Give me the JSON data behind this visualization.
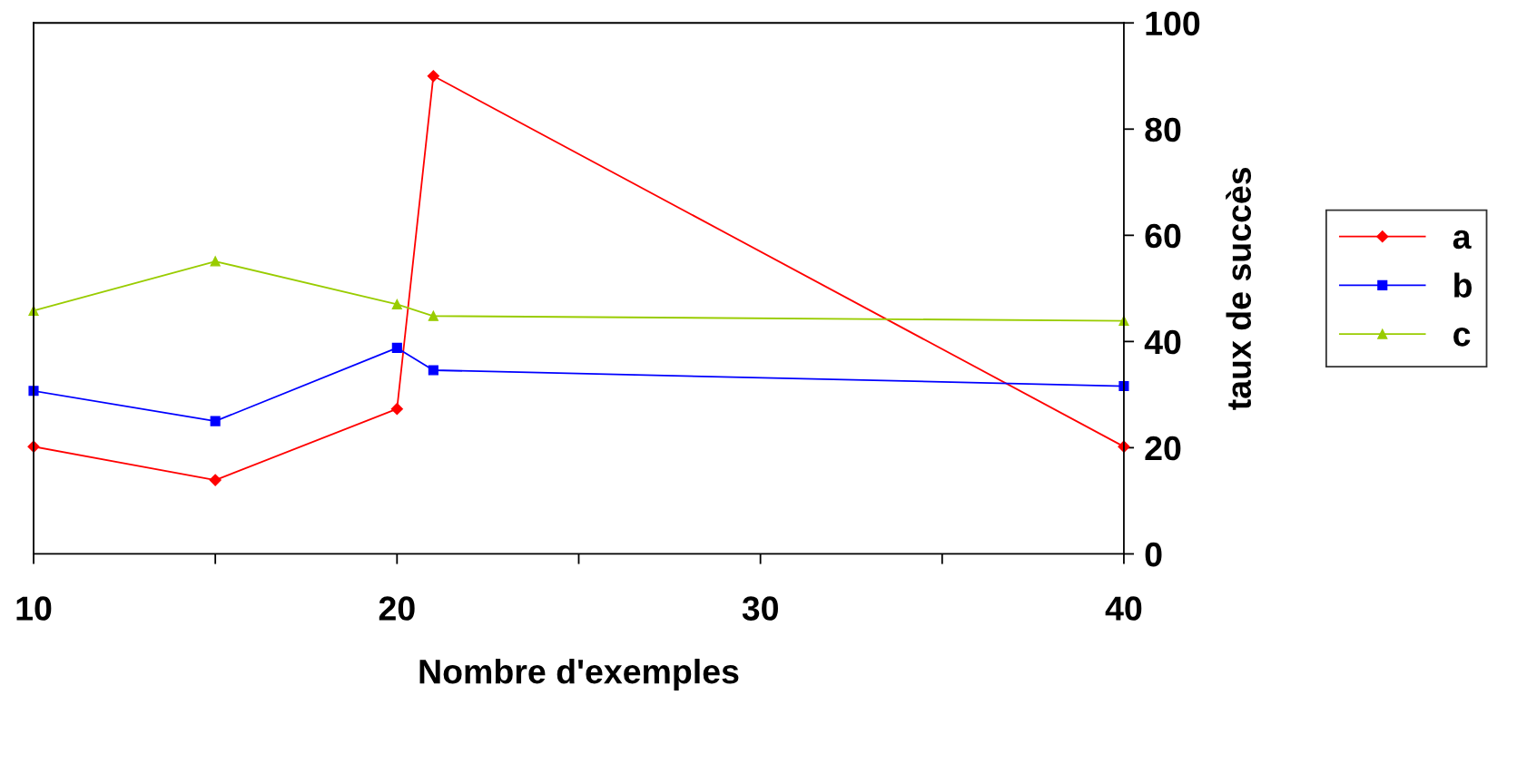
{
  "chart_data": {
    "type": "line",
    "xlabel": "Nombre d'exemples",
    "ylabel": "taux de succès",
    "x": [
      10,
      15,
      20,
      21,
      40
    ],
    "series": [
      {
        "name": "a",
        "color": "#ff0000",
        "marker": "diamond",
        "values": [
          20.2,
          13.9,
          27.3,
          90.0,
          20.2
        ]
      },
      {
        "name": "b",
        "color": "#0000ff",
        "marker": "square",
        "values": [
          30.7,
          25.0,
          38.8,
          34.6,
          31.6
        ]
      },
      {
        "name": "c",
        "color": "#99cc00",
        "marker": "triangle",
        "values": [
          45.8,
          55.1,
          47.0,
          44.8,
          43.9
        ]
      }
    ],
    "xlim": [
      10,
      40
    ],
    "ylim": [
      0,
      100
    ],
    "xticks": [
      10,
      {
        "value": 15,
        "label": null
      },
      20,
      {
        "value": 25,
        "label": null
      },
      30,
      {
        "value": 35,
        "label": null
      },
      40
    ],
    "yticks": [
      0,
      20,
      40,
      60,
      80,
      100
    ],
    "grid": false,
    "legend": "right",
    "line_style": "solid"
  }
}
